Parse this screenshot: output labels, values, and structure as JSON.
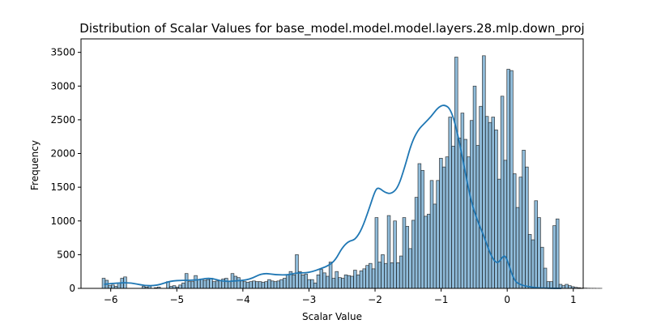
{
  "chart_data": {
    "type": "bar",
    "title": "Distribution of Scalar Values for base_model.model.model.layers.28.mlp.down_proj",
    "xlabel": "Scalar Value",
    "ylabel": "Frequency",
    "xlim": [
      -6.45,
      1.15
    ],
    "ylim": [
      0,
      3700
    ],
    "xticks": [
      -6,
      -5,
      -4,
      -3,
      -2,
      -1,
      0,
      1
    ],
    "xtick_labels": [
      "−6",
      "−5",
      "−4",
      "−3",
      "−2",
      "−1",
      "0",
      "1"
    ],
    "yticks": [
      0,
      500,
      1000,
      1500,
      2000,
      2500,
      3000,
      3500
    ],
    "ytick_labels": [
      "0",
      "500",
      "1000",
      "1500",
      "2000",
      "2500",
      "3000",
      "3500"
    ],
    "bin_start": -6.13,
    "bin_width": 0.0464,
    "bar_color": "#1f77b4",
    "bar_alpha": 0.5,
    "kde_color": "#1f77b4",
    "counts": [
      150,
      120,
      40,
      50,
      30,
      80,
      150,
      170,
      0,
      0,
      0,
      0,
      0,
      30,
      20,
      40,
      0,
      10,
      20,
      0,
      0,
      100,
      30,
      40,
      20,
      50,
      80,
      220,
      100,
      100,
      190,
      130,
      140,
      120,
      130,
      150,
      100,
      110,
      120,
      140,
      150,
      100,
      220,
      180,
      160,
      110,
      100,
      90,
      100,
      110,
      100,
      100,
      90,
      100,
      130,
      110,
      100,
      110,
      130,
      150,
      200,
      250,
      200,
      500,
      250,
      200,
      210,
      130,
      130,
      80,
      200,
      280,
      230,
      180,
      390,
      150,
      250,
      160,
      150,
      200,
      190,
      180,
      270,
      200,
      260,
      290,
      340,
      370,
      290,
      1050,
      390,
      500,
      370,
      1080,
      380,
      1000,
      380,
      480,
      1050,
      920,
      590,
      1010,
      1350,
      1850,
      1750,
      1070,
      1100,
      1600,
      1250,
      1600,
      1930,
      1800,
      1950,
      2540,
      2110,
      3430,
      2230,
      2600,
      2210,
      1950,
      2490,
      3000,
      2120,
      2700,
      3450,
      2550,
      2460,
      2540,
      2350,
      1620,
      2850,
      1900,
      3250,
      3230,
      1700,
      1200,
      1650,
      2050,
      1800,
      800,
      720,
      1300,
      1050,
      610,
      300,
      100,
      100,
      930,
      1030,
      60,
      40,
      60,
      40,
      25,
      15,
      10,
      5,
      5,
      3,
      2,
      2,
      1,
      1
    ],
    "kde_points": [
      [
        -6.1,
        60
      ],
      [
        -5.9,
        80
      ],
      [
        -5.7,
        85
      ],
      [
        -5.5,
        40
      ],
      [
        -5.3,
        40
      ],
      [
        -5.1,
        110
      ],
      [
        -4.9,
        120
      ],
      [
        -4.7,
        120
      ],
      [
        -4.5,
        160
      ],
      [
        -4.3,
        100
      ],
      [
        -4.1,
        110
      ],
      [
        -3.9,
        130
      ],
      [
        -3.7,
        230
      ],
      [
        -3.5,
        200
      ],
      [
        -3.3,
        200
      ],
      [
        -3.2,
        230
      ],
      [
        -3.0,
        230
      ],
      [
        -2.8,
        300
      ],
      [
        -2.7,
        340
      ],
      [
        -2.6,
        420
      ],
      [
        -2.5,
        600
      ],
      [
        -2.4,
        700
      ],
      [
        -2.3,
        720
      ],
      [
        -2.2,
        880
      ],
      [
        -2.1,
        1150
      ],
      [
        -2.0,
        1450
      ],
      [
        -1.95,
        1500
      ],
      [
        -1.85,
        1420
      ],
      [
        -1.75,
        1400
      ],
      [
        -1.65,
        1500
      ],
      [
        -1.55,
        1800
      ],
      [
        -1.45,
        2150
      ],
      [
        -1.35,
        2350
      ],
      [
        -1.25,
        2450
      ],
      [
        -1.15,
        2550
      ],
      [
        -1.05,
        2680
      ],
      [
        -0.95,
        2730
      ],
      [
        -0.85,
        2650
      ],
      [
        -0.75,
        2300
      ],
      [
        -0.65,
        1800
      ],
      [
        -0.55,
        1300
      ],
      [
        -0.45,
        1000
      ],
      [
        -0.35,
        770
      ],
      [
        -0.25,
        490
      ],
      [
        -0.15,
        350
      ],
      [
        -0.05,
        500
      ],
      [
        0.0,
        430
      ],
      [
        0.1,
        120
      ],
      [
        0.2,
        50
      ],
      [
        0.4,
        10
      ],
      [
        0.6,
        2
      ],
      [
        0.82,
        0
      ]
    ]
  }
}
